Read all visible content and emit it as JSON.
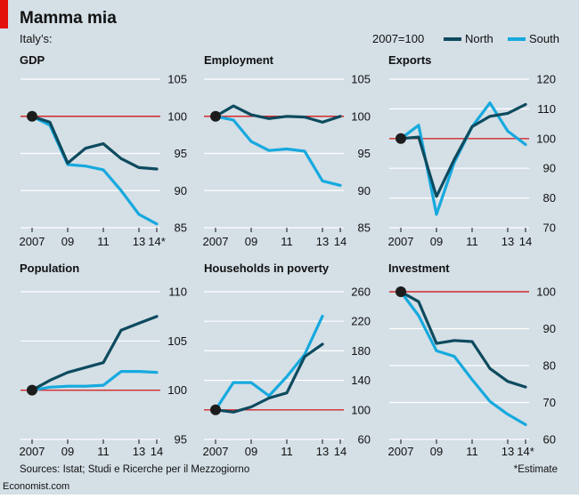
{
  "title": "Mamma mia",
  "subtitle": "Italy’s:",
  "legend": {
    "base_label": "2007=100",
    "placement": "top-right",
    "entries": [
      {
        "name": "North",
        "color": "#0d4a5e"
      },
      {
        "name": "South",
        "color": "#16a9de"
      }
    ]
  },
  "colors": {
    "background": "#d4dfe6",
    "grid": "#ffffff",
    "reference": "#d22a2a",
    "marker": "#1c1c1c",
    "text": "#111111",
    "brand_red": "#e3120b"
  },
  "source": "Sources: Istat; Studi e Ricerche per il Mezzogiorno",
  "footnote": "*Estimate",
  "brand": "Economist.com",
  "chart_data": [
    {
      "type": "line",
      "title": "GDP",
      "x_ticks": [
        {
          "x": 2007,
          "label": "2007"
        },
        {
          "x": 2009,
          "label": "09"
        },
        {
          "x": 2011,
          "label": "11"
        },
        {
          "x": 2013,
          "label": "13"
        },
        {
          "x": 2014,
          "label": "14*"
        }
      ],
      "xlim": [
        2007,
        2014
      ],
      "ylim": [
        85,
        105
      ],
      "y_ticks": [
        85,
        90,
        95,
        100,
        105
      ],
      "reference": 100,
      "grid": true,
      "series": [
        {
          "name": "North",
          "x": [
            2007,
            2008,
            2009,
            2010,
            2011,
            2012,
            2013,
            2014
          ],
          "values": [
            100,
            99.2,
            93.7,
            95.7,
            96.3,
            94.3,
            93.1,
            92.9
          ]
        },
        {
          "name": "South",
          "x": [
            2007,
            2008,
            2009,
            2010,
            2011,
            2012,
            2013,
            2014
          ],
          "values": [
            100,
            98.8,
            93.5,
            93.3,
            92.8,
            90.0,
            86.8,
            85.5
          ]
        }
      ]
    },
    {
      "type": "line",
      "title": "Employment",
      "x_ticks": [
        {
          "x": 2007,
          "label": "2007"
        },
        {
          "x": 2009,
          "label": "09"
        },
        {
          "x": 2011,
          "label": "11"
        },
        {
          "x": 2013,
          "label": "13"
        },
        {
          "x": 2014,
          "label": "14"
        }
      ],
      "xlim": [
        2007,
        2014
      ],
      "ylim": [
        85,
        105
      ],
      "y_ticks": [
        85,
        90,
        95,
        100,
        105
      ],
      "reference": 100,
      "grid": true,
      "series": [
        {
          "name": "North",
          "x": [
            2007,
            2008,
            2009,
            2010,
            2011,
            2012,
            2013,
            2014
          ],
          "values": [
            100,
            101.4,
            100.2,
            99.7,
            100.0,
            99.9,
            99.2,
            100.0
          ]
        },
        {
          "name": "South",
          "x": [
            2007,
            2008,
            2009,
            2010,
            2011,
            2012,
            2013,
            2014
          ],
          "values": [
            100,
            99.5,
            96.6,
            95.4,
            95.6,
            95.3,
            91.3,
            90.7
          ]
        }
      ]
    },
    {
      "type": "line",
      "title": "Exports",
      "x_ticks": [
        {
          "x": 2007,
          "label": "2007"
        },
        {
          "x": 2009,
          "label": "09"
        },
        {
          "x": 2011,
          "label": "11"
        },
        {
          "x": 2013,
          "label": "13"
        },
        {
          "x": 2014,
          "label": "14"
        }
      ],
      "xlim": [
        2007,
        2014
      ],
      "ylim": [
        70,
        120
      ],
      "y_ticks": [
        70,
        80,
        90,
        100,
        110,
        120
      ],
      "reference": 100,
      "grid": true,
      "series": [
        {
          "name": "North",
          "x": [
            2007,
            2008,
            2009,
            2010,
            2011,
            2012,
            2013,
            2014
          ],
          "values": [
            100,
            100.5,
            80.5,
            93,
            104,
            107.5,
            108.5,
            111.5
          ]
        },
        {
          "name": "South",
          "x": [
            2007,
            2008,
            2009,
            2010,
            2011,
            2012,
            2013,
            2014
          ],
          "values": [
            100,
            104.5,
            74.5,
            92,
            104,
            112,
            102.5,
            98
          ]
        }
      ]
    },
    {
      "type": "line",
      "title": "Population",
      "x_ticks": [
        {
          "x": 2007,
          "label": "2007"
        },
        {
          "x": 2009,
          "label": "09"
        },
        {
          "x": 2011,
          "label": "11"
        },
        {
          "x": 2013,
          "label": "13"
        },
        {
          "x": 2014,
          "label": "14"
        }
      ],
      "xlim": [
        2007,
        2014
      ],
      "ylim": [
        95,
        110
      ],
      "y_ticks": [
        95,
        100,
        105,
        110
      ],
      "reference": 100,
      "grid": true,
      "series": [
        {
          "name": "North",
          "x": [
            2007,
            2008,
            2009,
            2010,
            2011,
            2012,
            2013,
            2014
          ],
          "values": [
            100,
            101.0,
            101.8,
            102.3,
            102.8,
            106.1,
            106.8,
            107.5
          ]
        },
        {
          "name": "South",
          "x": [
            2007,
            2008,
            2009,
            2010,
            2011,
            2012,
            2013,
            2014
          ],
          "values": [
            100,
            100.3,
            100.4,
            100.4,
            100.5,
            101.9,
            101.9,
            101.8
          ]
        }
      ]
    },
    {
      "type": "line",
      "title": "Households in poverty",
      "x_ticks": [
        {
          "x": 2007,
          "label": "2007"
        },
        {
          "x": 2009,
          "label": "09"
        },
        {
          "x": 2011,
          "label": "11"
        },
        {
          "x": 2013,
          "label": "13"
        },
        {
          "x": 2014,
          "label": "14"
        }
      ],
      "xlim": [
        2007,
        2014
      ],
      "ylim": [
        60,
        260
      ],
      "y_ticks": [
        60,
        100,
        140,
        180,
        220,
        260
      ],
      "reference": 100,
      "grid": true,
      "series": [
        {
          "name": "North",
          "x": [
            2007,
            2008,
            2009,
            2010,
            2011,
            2012,
            2013
          ],
          "values": [
            100,
            97,
            104,
            116,
            123,
            172,
            189
          ]
        },
        {
          "name": "South",
          "x": [
            2007,
            2008,
            2009,
            2010,
            2011,
            2012,
            2013
          ],
          "values": [
            100,
            137,
            137,
            119,
            145,
            175,
            227
          ]
        }
      ]
    },
    {
      "type": "line",
      "title": "Investment",
      "x_ticks": [
        {
          "x": 2007,
          "label": "2007"
        },
        {
          "x": 2009,
          "label": "09"
        },
        {
          "x": 2011,
          "label": "11"
        },
        {
          "x": 2013,
          "label": "13"
        },
        {
          "x": 2014,
          "label": "14*"
        }
      ],
      "xlim": [
        2007,
        2014
      ],
      "ylim": [
        60,
        100
      ],
      "y_ticks": [
        60,
        70,
        80,
        90,
        100
      ],
      "reference": 100,
      "grid": true,
      "series": [
        {
          "name": "North",
          "x": [
            2007,
            2008,
            2009,
            2010,
            2011,
            2012,
            2013,
            2014
          ],
          "values": [
            100,
            97.3,
            86.0,
            86.8,
            86.5,
            79.2,
            75.7,
            74.2
          ]
        },
        {
          "name": "South",
          "x": [
            2007,
            2008,
            2009,
            2010,
            2011,
            2012,
            2013,
            2014
          ],
          "values": [
            100,
            93.5,
            84.0,
            82.5,
            76.2,
            70.3,
            66.8,
            64.0
          ]
        }
      ]
    }
  ]
}
